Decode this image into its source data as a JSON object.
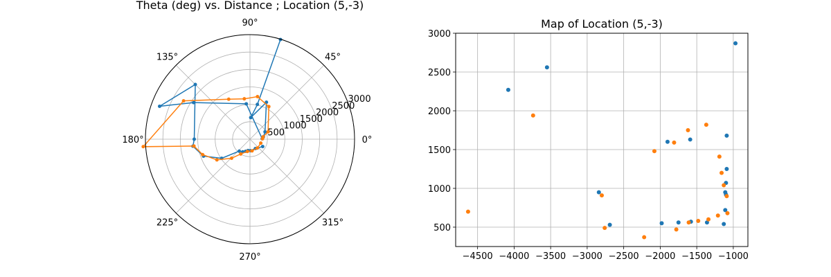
{
  "chart_data": [
    {
      "type": "polar",
      "title": "Theta (deg) vs. Distance ; Location (5,-3)",
      "angle_unit": "deg",
      "angle_ticks": [
        "0°",
        "45°",
        "90°",
        "135°",
        "180°",
        "225°",
        "270°",
        "315°"
      ],
      "radial_ticks": [
        "500",
        "1000",
        "1500",
        "2000",
        "2500",
        "3000"
      ],
      "rlim": [
        0,
        3000
      ],
      "grid": true,
      "series": [
        {
          "color": "#1f77b4",
          "points": [
            {
              "theta": 73,
              "r": 2990
            },
            {
              "theta": 78,
              "r": 1020
            },
            {
              "theta": 88,
              "r": 620
            },
            {
              "theta": 66,
              "r": 1160
            },
            {
              "theta": 26,
              "r": 480
            },
            {
              "theta": 10,
              "r": 390
            },
            {
              "theta": 2,
              "r": 350
            },
            {
              "theta": 96,
              "r": 1020
            },
            {
              "theta": 147,
              "r": 1930
            },
            {
              "theta": 160,
              "r": 2760
            },
            {
              "theta": 135,
              "r": 2220
            },
            {
              "theta": 180,
              "r": 1600
            },
            {
              "theta": 187,
              "r": 1650
            },
            {
              "theta": 200,
              "r": 1420
            },
            {
              "theta": 214,
              "r": 980
            },
            {
              "theta": 228,
              "r": 460
            },
            {
              "theta": 240,
              "r": 420
            },
            {
              "theta": 250,
              "r": 370
            },
            {
              "theta": 260,
              "r": 330
            },
            {
              "theta": 272,
              "r": 330
            },
            {
              "theta": 300,
              "r": 310
            },
            {
              "theta": 330,
              "r": 420
            }
          ]
        },
        {
          "color": "#ff7f0e",
          "points": [
            {
              "theta": 2,
              "r": 360
            },
            {
              "theta": 10,
              "r": 380
            },
            {
              "theta": 22,
              "r": 560
            },
            {
              "theta": 60,
              "r": 1080
            },
            {
              "theta": 80,
              "r": 1240
            },
            {
              "theta": 98,
              "r": 1170
            },
            {
              "theta": 118,
              "r": 1300
            },
            {
              "theta": 150,
              "r": 2200
            },
            {
              "theta": 184,
              "r": 3070
            },
            {
              "theta": 187,
              "r": 1620
            },
            {
              "theta": 198,
              "r": 1430
            },
            {
              "theta": 212,
              "r": 1120
            },
            {
              "theta": 226,
              "r": 760
            },
            {
              "theta": 238,
              "r": 500
            },
            {
              "theta": 258,
              "r": 360
            },
            {
              "theta": 280,
              "r": 340
            },
            {
              "theta": 310,
              "r": 330
            },
            {
              "theta": 340,
              "r": 330
            }
          ]
        }
      ]
    },
    {
      "type": "scatter",
      "title": "Map of Location (5,-3)",
      "xlabel": "",
      "ylabel": "",
      "xlim": [
        -4800,
        -800
      ],
      "ylim": [
        250,
        3000
      ],
      "xticks": [
        -4500,
        -4000,
        -3500,
        -3000,
        -2500,
        -2000,
        -1500,
        -1000
      ],
      "yticks": [
        500,
        1000,
        1500,
        2000,
        2500,
        3000
      ],
      "grid": true,
      "series": [
        {
          "color": "#1f77b4",
          "points": [
            {
              "x": -970,
              "y": 2870
            },
            {
              "x": -3550,
              "y": 2560
            },
            {
              "x": -4080,
              "y": 2270
            },
            {
              "x": -1090,
              "y": 1680
            },
            {
              "x": -1590,
              "y": 1630
            },
            {
              "x": -1900,
              "y": 1600
            },
            {
              "x": -1090,
              "y": 1250
            },
            {
              "x": -1100,
              "y": 1070
            },
            {
              "x": -2840,
              "y": 950
            },
            {
              "x": -1110,
              "y": 950
            },
            {
              "x": -1100,
              "y": 920
            },
            {
              "x": -1110,
              "y": 720
            },
            {
              "x": -1130,
              "y": 540
            },
            {
              "x": -1360,
              "y": 560
            },
            {
              "x": -1580,
              "y": 570
            },
            {
              "x": -1750,
              "y": 560
            },
            {
              "x": -1980,
              "y": 550
            },
            {
              "x": -2690,
              "y": 530
            }
          ]
        },
        {
          "color": "#ff7f0e",
          "points": [
            {
              "x": -3740,
              "y": 1940
            },
            {
              "x": -1370,
              "y": 1820
            },
            {
              "x": -1620,
              "y": 1750
            },
            {
              "x": -1810,
              "y": 1590
            },
            {
              "x": -2080,
              "y": 1480
            },
            {
              "x": -1190,
              "y": 1410
            },
            {
              "x": -1160,
              "y": 1200
            },
            {
              "x": -1130,
              "y": 1040
            },
            {
              "x": -2800,
              "y": 910
            },
            {
              "x": -1090,
              "y": 900
            },
            {
              "x": -1080,
              "y": 680
            },
            {
              "x": -1210,
              "y": 650
            },
            {
              "x": -1340,
              "y": 600
            },
            {
              "x": -1480,
              "y": 580
            },
            {
              "x": -1610,
              "y": 560
            },
            {
              "x": -2760,
              "y": 490
            },
            {
              "x": -1780,
              "y": 470
            },
            {
              "x": -4630,
              "y": 700
            },
            {
              "x": -2220,
              "y": 370
            }
          ]
        }
      ]
    }
  ]
}
